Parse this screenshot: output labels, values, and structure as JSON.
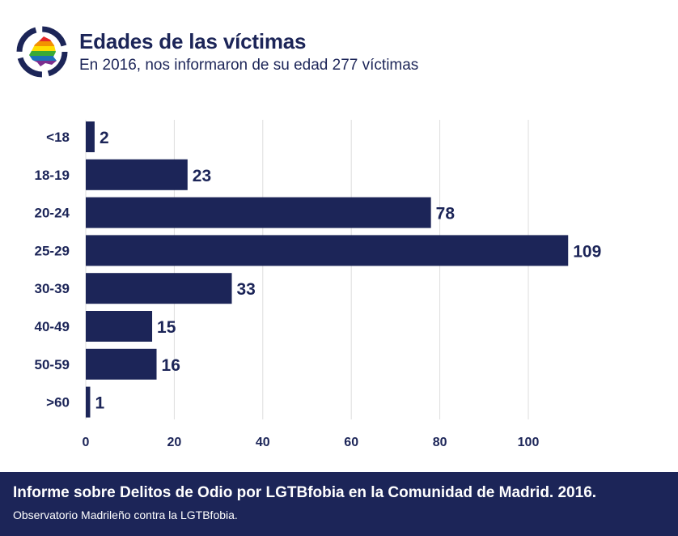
{
  "header": {
    "title": "Edades de las víctimas",
    "subtitle": "En 2016, nos informaron de su edad 277 víctimas"
  },
  "logo": {
    "icon": "madrid-rainbow-region-icon",
    "colors": {
      "ring": "#1c2558",
      "rainbow": [
        "#e62828",
        "#f39200",
        "#ffdd00",
        "#3aaa35",
        "#1d71b8",
        "#7b2e8e"
      ]
    }
  },
  "chart_data": {
    "type": "bar",
    "orientation": "horizontal",
    "categories": [
      "<18",
      "18-19",
      "20-24",
      "25-29",
      "30-39",
      "40-49",
      "50-59",
      ">60"
    ],
    "values": [
      2,
      23,
      78,
      109,
      33,
      15,
      16,
      1
    ],
    "data_labels": [
      "2",
      "23",
      "78",
      "109",
      "33",
      "15",
      "16",
      "1"
    ],
    "x_ticks": [
      "0",
      "20",
      "40",
      "60",
      "80",
      "100"
    ],
    "xlim": [
      0,
      110
    ],
    "grid": true,
    "legend": "none",
    "bar_color": "#1c2558",
    "grid_color": "#dddddd"
  },
  "footer": {
    "title": "Informe sobre Delitos de Odio por LGTBfobia en la Comunidad de Madrid. 2016.",
    "subtitle": "Observatorio Madrileño contra la LGTBfobia."
  }
}
